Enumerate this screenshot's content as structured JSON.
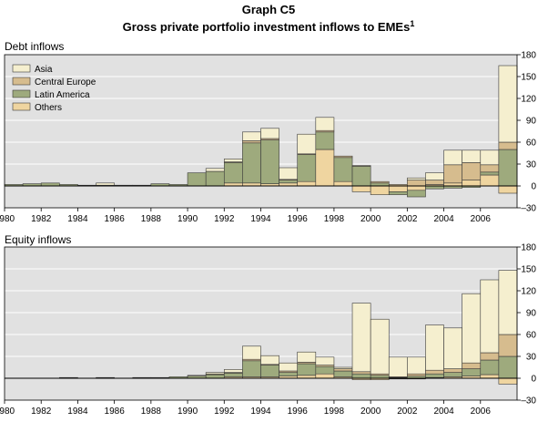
{
  "header": {
    "graph_label": "Graph C5",
    "title": "Gross private portfolio investment inflows to EMEs",
    "title_superscript": "1"
  },
  "colors": {
    "Asia": "#f5efcf",
    "Central Europe": "#d6bc8e",
    "Latin America": "#9eaa7d",
    "Others": "#efd5a0",
    "plot_background": "#e1e1e1",
    "gridline": "#ffffff"
  },
  "chart_data": [
    {
      "type": "bar",
      "stacked": true,
      "title": "Debt inflows",
      "years": [
        1980,
        1981,
        1982,
        1983,
        1984,
        1985,
        1986,
        1987,
        1988,
        1989,
        1990,
        1991,
        1992,
        1993,
        1994,
        1995,
        1996,
        1997,
        1998,
        1999,
        2000,
        2001,
        2002,
        2003,
        2004,
        2005,
        2006,
        2007
      ],
      "x_tick_labels": [
        "1980",
        "1982",
        "1984",
        "1986",
        "1988",
        "1990",
        "1992",
        "1994",
        "1996",
        "1998",
        "2000",
        "2002",
        "2004",
        "2006"
      ],
      "y_tick_labels": [
        "–30",
        "0",
        "30",
        "60",
        "90",
        "120",
        "150",
        "180"
      ],
      "ylim": [
        -30,
        180
      ],
      "y_axis_side": "right",
      "grid": true,
      "legend": {
        "position": "top-left",
        "entries": [
          "Asia",
          "Central Europe",
          "Latin America",
          "Others"
        ]
      },
      "series": [
        {
          "name": "Others",
          "values": [
            0,
            0,
            0,
            0,
            0,
            0,
            0,
            0,
            0,
            0,
            0,
            0,
            4,
            4,
            3,
            4,
            6,
            50,
            6,
            -8,
            -12,
            -8,
            -6,
            2,
            4,
            8,
            15,
            -10
          ]
        },
        {
          "name": "Latin America",
          "values": [
            2,
            3,
            4,
            2,
            1,
            1,
            1,
            1,
            3,
            2,
            18,
            20,
            28,
            55,
            60,
            4,
            37,
            24,
            33,
            27,
            4,
            -4,
            -9,
            -4,
            -3,
            -2,
            4,
            50
          ]
        },
        {
          "name": "Central Europe",
          "values": [
            0,
            0,
            0,
            0,
            0,
            0,
            0,
            0,
            0,
            0,
            0,
            0,
            1,
            3,
            2,
            1,
            1,
            2,
            2,
            1,
            2,
            2,
            8,
            6,
            25,
            24,
            10,
            10
          ]
        },
        {
          "name": "Asia",
          "values": [
            0,
            0,
            0,
            0,
            0,
            3,
            0,
            0,
            0,
            0,
            0,
            4,
            4,
            12,
            14,
            16,
            27,
            18,
            0,
            0,
            0,
            0,
            3,
            10,
            20,
            17,
            20,
            105
          ]
        }
      ]
    },
    {
      "type": "bar",
      "stacked": true,
      "title": "Equity inflows",
      "years": [
        1980,
        1981,
        1982,
        1983,
        1984,
        1985,
        1986,
        1987,
        1988,
        1989,
        1990,
        1991,
        1992,
        1993,
        1994,
        1995,
        1996,
        1997,
        1998,
        1999,
        2000,
        2001,
        2002,
        2003,
        2004,
        2005,
        2006,
        2007
      ],
      "x_tick_labels": [
        "1980",
        "1982",
        "1984",
        "1986",
        "1988",
        "1990",
        "1992",
        "1994",
        "1996",
        "1998",
        "2000",
        "2002",
        "2004",
        "2006"
      ],
      "y_tick_labels": [
        "–30",
        "0",
        "30",
        "60",
        "90",
        "120",
        "150",
        "180"
      ],
      "ylim": [
        -30,
        180
      ],
      "y_axis_side": "right",
      "grid": true,
      "series": [
        {
          "name": "Others",
          "values": [
            0,
            0,
            0,
            0,
            0,
            0,
            0,
            0,
            0,
            0,
            0,
            0,
            2,
            2,
            2,
            3,
            4,
            6,
            2,
            -2,
            -2,
            -1,
            -1,
            1,
            2,
            3,
            5,
            -8
          ]
        },
        {
          "name": "Latin America",
          "values": [
            0,
            0,
            0,
            1,
            0,
            1,
            0,
            1,
            1,
            2,
            3,
            5,
            5,
            22,
            16,
            5,
            16,
            10,
            8,
            6,
            4,
            1,
            3,
            5,
            6,
            10,
            20,
            30
          ]
        },
        {
          "name": "Central Europe",
          "values": [
            0,
            0,
            0,
            0,
            0,
            0,
            0,
            0,
            0,
            0,
            0,
            1,
            1,
            2,
            1,
            2,
            2,
            2,
            3,
            3,
            2,
            1,
            3,
            5,
            5,
            8,
            10,
            30
          ]
        },
        {
          "name": "Asia",
          "values": [
            0,
            0,
            0,
            0,
            0,
            0,
            0,
            0,
            0,
            0,
            1,
            2,
            4,
            18,
            12,
            11,
            14,
            11,
            2,
            94,
            75,
            27,
            23,
            62,
            56,
            95,
            100,
            88
          ]
        }
      ]
    }
  ]
}
